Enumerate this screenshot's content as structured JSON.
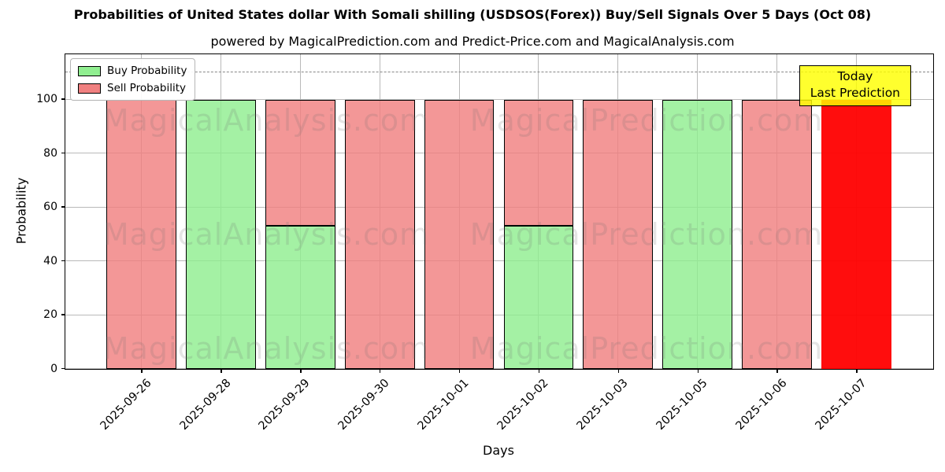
{
  "header": {
    "title": "Probabilities of United States dollar With Somali shilling (USDSOS(Forex)) Buy/Sell Signals Over 5 Days (Oct 08)",
    "subtitle": "powered by MagicalPrediction.com and Predict-Price.com and MagicalAnalysis.com"
  },
  "legend": {
    "items": [
      {
        "label": "Buy Probability",
        "color": "#90EE90"
      },
      {
        "label": "Sell Probability",
        "color": "#F08080"
      }
    ]
  },
  "annotation_box": {
    "line1": "Today",
    "line2": "Last Prediction"
  },
  "watermarks": {
    "left_text": "MagicalAnalysis.com",
    "right_text": "MagicalPrediction.com"
  },
  "colors": {
    "buy": "#90EE90",
    "sell": "#F08080",
    "today_bar": "#FF0000",
    "annotation_bg": "#FFFF00",
    "grid": "#B9B9B9",
    "dashed_line": "#878787",
    "bar_edge": "#000000"
  },
  "chart_data": {
    "type": "bar",
    "stacked": true,
    "title": "Probabilities of United States dollar With Somali shilling (USDSOS(Forex)) Buy/Sell Signals Over 5 Days (Oct 08)",
    "xlabel": "Days",
    "ylabel": "Probability",
    "categories": [
      "2025-09-26",
      "2025-09-28",
      "2025-09-29",
      "2025-09-30",
      "2025-10-01",
      "2025-10-02",
      "2025-10-03",
      "2025-10-05",
      "2025-10-06",
      "2025-10-07"
    ],
    "series": [
      {
        "name": "Buy Probability",
        "color": "#90EE90",
        "values": [
          0,
          100,
          53,
          0,
          0,
          53,
          0,
          100,
          0,
          0
        ]
      },
      {
        "name": "Sell Probability",
        "color": "#F08080",
        "values": [
          100,
          0,
          47,
          100,
          100,
          47,
          100,
          0,
          100,
          100
        ]
      }
    ],
    "highlight_last_bar": {
      "category": "2025-10-07",
      "value": 100,
      "color": "#FF0000",
      "note": [
        "Today",
        "Last Prediction"
      ]
    },
    "yticks": [
      0,
      20,
      40,
      60,
      80,
      100
    ],
    "ylim": [
      0,
      116.5
    ],
    "dashed_threshold_y": 110,
    "grid": true,
    "legend_position": "upper left"
  }
}
